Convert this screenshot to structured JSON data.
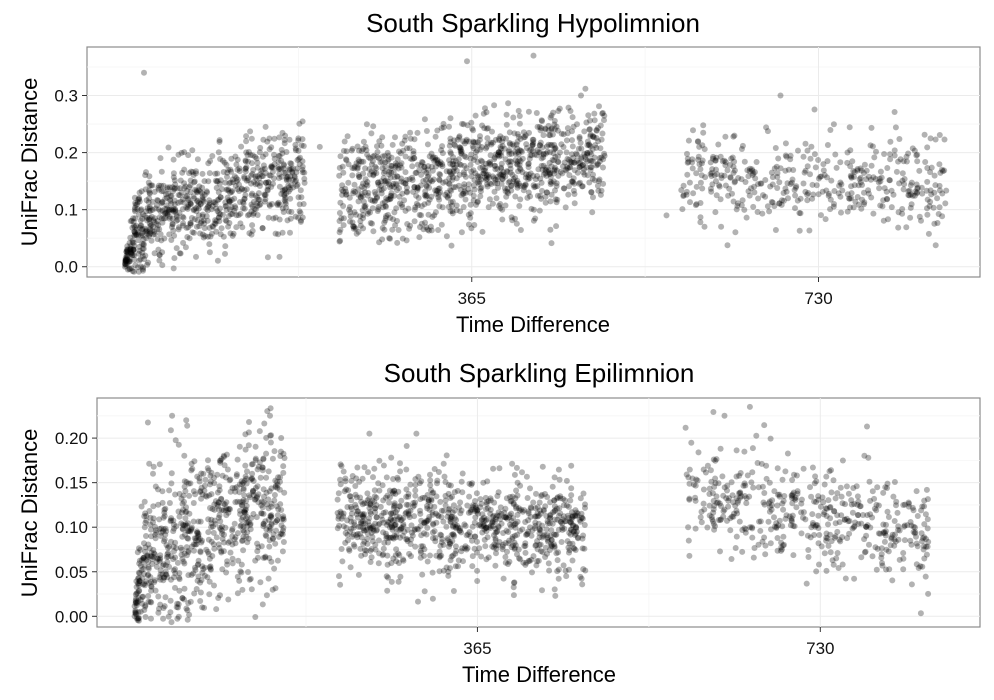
{
  "chart_data": [
    {
      "type": "scatter",
      "title": "South Sparkling Hypolimnion",
      "xlabel": "Time Difference",
      "ylabel": "UniFrac Distance",
      "xlim": [
        -40,
        900
      ],
      "ylim": [
        -0.018,
        0.385
      ],
      "x_ticks": [
        365,
        730
      ],
      "x_tick_labels": [
        "365",
        "730"
      ],
      "y_ticks": [
        0.0,
        0.1,
        0.2,
        0.3
      ],
      "y_tick_labels": [
        "0.0",
        "0.1",
        "0.2",
        "0.3"
      ],
      "grid": true,
      "point_color": "#000000",
      "point_opacity": 0.3,
      "clusters": [
        {
          "x_range": [
            0,
            190
          ],
          "y_center": [
            0.07,
            0.17
          ],
          "y_spread": 0.045,
          "count": 780
        },
        {
          "x_range": [
            225,
            505
          ],
          "y_center": [
            0.13,
            0.2
          ],
          "y_spread": 0.045,
          "count": 1050
        },
        {
          "x_range": [
            585,
            865
          ],
          "y_center": [
            0.15,
            0.15
          ],
          "y_spread": 0.04,
          "count": 420
        }
      ],
      "points": [
        {
          "x": 0,
          "y": 0.0
        },
        {
          "x": 3,
          "y": 0.03
        },
        {
          "x": 6,
          "y": 0.08
        },
        {
          "x": 20,
          "y": 0.34
        },
        {
          "x": 360,
          "y": 0.36
        },
        {
          "x": 430,
          "y": 0.37
        },
        {
          "x": 690,
          "y": 0.3
        },
        {
          "x": 205,
          "y": 0.21
        },
        {
          "x": 860,
          "y": 0.17
        },
        {
          "x": 570,
          "y": 0.09
        },
        {
          "x": 610,
          "y": 0.07
        },
        {
          "x": 480,
          "y": 0.3
        }
      ]
    },
    {
      "type": "scatter",
      "title": "South Sparkling Epilimnion",
      "xlabel": "Time Difference",
      "ylabel": "UniFrac Distance",
      "xlim": [
        -40,
        900
      ],
      "ylim": [
        -0.012,
        0.245
      ],
      "x_ticks": [
        365,
        730
      ],
      "x_tick_labels": [
        "365",
        "730"
      ],
      "y_ticks": [
        0.0,
        0.05,
        0.1,
        0.15,
        0.2
      ],
      "y_tick_labels": [
        "0.00",
        "0.05",
        "0.10",
        "0.15",
        "0.20"
      ],
      "grid": true,
      "point_color": "#000000",
      "point_opacity": 0.3,
      "clusters": [
        {
          "x_range": [
            0,
            160
          ],
          "y_center": [
            0.07,
            0.13
          ],
          "y_spread": 0.045,
          "count": 720
        },
        {
          "x_range": [
            215,
            480
          ],
          "y_center": [
            0.11,
            0.1
          ],
          "y_spread": 0.028,
          "count": 900
        },
        {
          "x_range": [
            585,
            845
          ],
          "y_center": [
            0.14,
            0.09
          ],
          "y_spread": 0.03,
          "count": 470
        }
      ],
      "points": [
        {
          "x": 0,
          "y": 0.0
        },
        {
          "x": 3,
          "y": 0.015
        },
        {
          "x": 40,
          "y": 0.225
        },
        {
          "x": 55,
          "y": 0.22
        },
        {
          "x": 250,
          "y": 0.205
        },
        {
          "x": 300,
          "y": 0.205
        },
        {
          "x": 655,
          "y": 0.235
        },
        {
          "x": 628,
          "y": 0.225
        },
        {
          "x": 230,
          "y": 0.055
        },
        {
          "x": 590,
          "y": 0.085
        },
        {
          "x": 840,
          "y": 0.075
        },
        {
          "x": 150,
          "y": 0.145
        }
      ]
    }
  ]
}
